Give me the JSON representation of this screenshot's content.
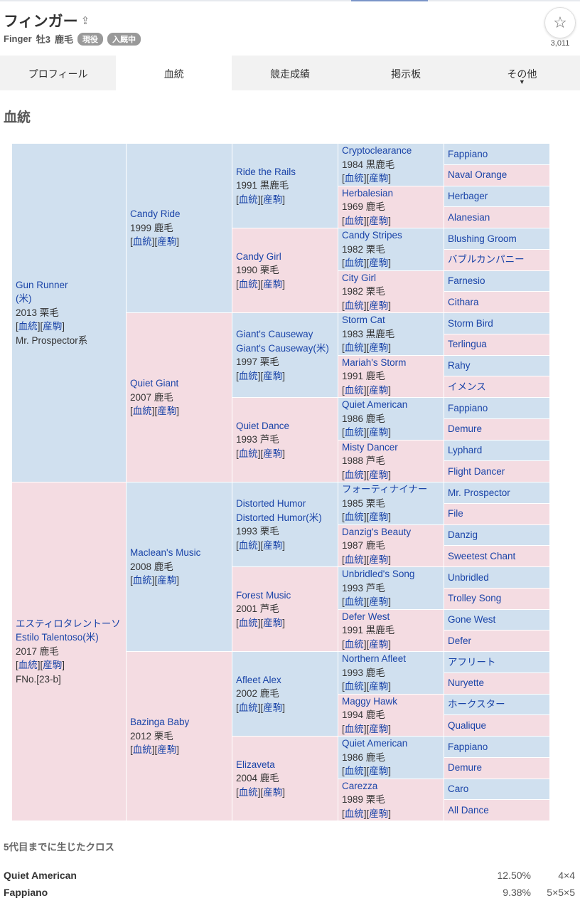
{
  "header": {
    "title": "フィンガー",
    "name_en": "Finger",
    "sex_age": "牡3",
    "coat": "鹿毛",
    "badges": [
      "現役",
      "入厩中"
    ],
    "favorite_count": "3,011"
  },
  "tabs": [
    {
      "label": "プロフィール"
    },
    {
      "label": "血統",
      "active": true
    },
    {
      "label": "競走成績"
    },
    {
      "label": "掲示板"
    },
    {
      "label": "その他",
      "arrow": "▼"
    }
  ],
  "section_title": "血統",
  "link_labels": [
    "血統",
    "産駒"
  ],
  "pedigree": {
    "gen1": [
      {
        "name": "Gun Runner",
        "name2": "(米)",
        "info": "2013 栗毛",
        "extra": "Mr. Prospector系"
      },
      {
        "name": "エスティロタレントーソ",
        "name2": "Estilo Talentoso(米)",
        "info": "2017 鹿毛",
        "extra": "FNo.[23-b]"
      }
    ],
    "gen2": [
      {
        "name": "Candy Ride",
        "info": "1999 鹿毛"
      },
      {
        "name": "Quiet Giant",
        "info": "2007 鹿毛"
      },
      {
        "name": "Maclean's Music",
        "info": "2008 鹿毛"
      },
      {
        "name": "Bazinga Baby",
        "info": "2012 栗毛"
      }
    ],
    "gen3": [
      {
        "name": "Ride the Rails",
        "info": "1991 黒鹿毛"
      },
      {
        "name": "Candy Girl",
        "info": "1990 栗毛"
      },
      {
        "name": "Giant's Causeway",
        "name2": "Giant's Causeway(米)",
        "info": "1997 栗毛"
      },
      {
        "name": "Quiet Dance",
        "info": "1993 芦毛"
      },
      {
        "name": "Distorted Humor",
        "name2": "Distorted Humor(米)",
        "info": "1993 栗毛"
      },
      {
        "name": "Forest Music",
        "info": "2001 芦毛"
      },
      {
        "name": "Afleet Alex",
        "info": "2002 鹿毛"
      },
      {
        "name": "Elizaveta",
        "info": "2004 鹿毛"
      }
    ],
    "gen4": [
      {
        "name": "Cryptoclearance",
        "info": "1984 黒鹿毛"
      },
      {
        "name": "Herbalesian",
        "info": "1969 鹿毛"
      },
      {
        "name": "Candy Stripes",
        "info": "1982 栗毛"
      },
      {
        "name": "City Girl",
        "info": "1982 栗毛"
      },
      {
        "name": "Storm Cat",
        "info": "1983 黒鹿毛"
      },
      {
        "name": "Mariah's Storm",
        "info": "1991 鹿毛"
      },
      {
        "name": "Quiet American",
        "info": "1986 鹿毛"
      },
      {
        "name": "Misty Dancer",
        "info": "1988 芦毛"
      },
      {
        "name": "フォーティナイナー",
        "info": "1985 栗毛"
      },
      {
        "name": "Danzig's Beauty",
        "info": "1987 鹿毛"
      },
      {
        "name": "Unbridled's Song",
        "info": "1993 芦毛"
      },
      {
        "name": "Defer West",
        "info": "1991 黒鹿毛"
      },
      {
        "name": "Northern Afleet",
        "info": "1993 鹿毛"
      },
      {
        "name": "Maggy Hawk",
        "info": "1994 鹿毛"
      },
      {
        "name": "Quiet American",
        "info": "1986 鹿毛"
      },
      {
        "name": "Carezza",
        "info": "1989 栗毛"
      }
    ],
    "gen5": [
      "Fappiano",
      "Naval Orange",
      "Herbager",
      "Alanesian",
      "Blushing Groom",
      "バブルカンパニー",
      "Farnesio",
      "Cithara",
      "Storm Bird",
      "Terlingua",
      "Rahy",
      "イメンス",
      "Fappiano",
      "Demure",
      "Lyphard",
      "Flight Dancer",
      "Mr. Prospector",
      "File",
      "Danzig",
      "Sweetest Chant",
      "Unbridled",
      "Trolley Song",
      "Gone West",
      "Defer",
      "アフリート",
      "Nuryette",
      "ホークスター",
      "Qualique",
      "Fappiano",
      "Demure",
      "Caro",
      "All Dance"
    ]
  },
  "crosses": {
    "title": "5代目までに生じたクロス",
    "items": [
      {
        "name": "Quiet American",
        "percent": "12.50%",
        "gen": "4×4"
      },
      {
        "name": "Fappiano",
        "percent": "9.38%",
        "gen": "5×5×5"
      }
    ]
  },
  "colors": {
    "male": "#d0e0ef",
    "female": "#f4dce2",
    "link": "#1a44a8"
  }
}
